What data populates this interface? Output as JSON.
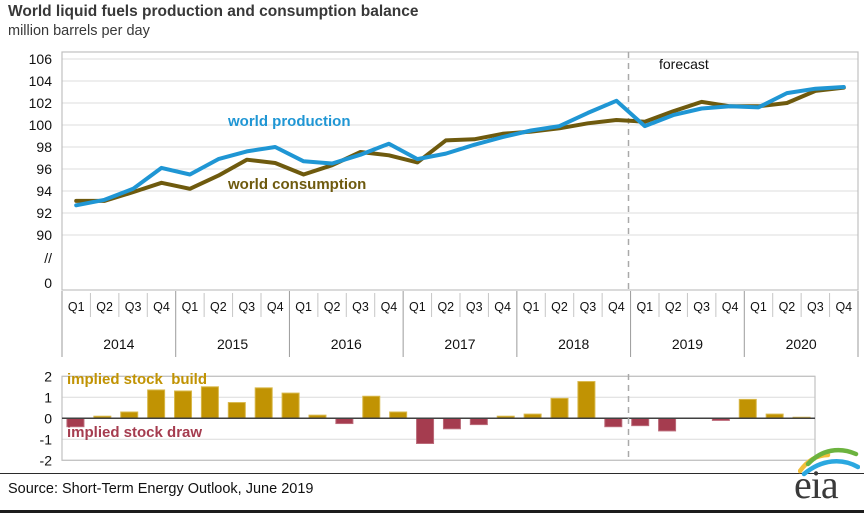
{
  "title": "World liquid fuels production and consumption balance",
  "subtitle": "million barrels per day",
  "source": "Source: Short-Term Energy Outlook, June 2019",
  "logo": {
    "text": "eia",
    "swoosh_colors": [
      "#f2bf3a",
      "#6cb33f",
      "#2ba8e0"
    ]
  },
  "colors": {
    "production_blue": "#1f96d4",
    "consumption_olive": "#6e5a0e",
    "build_gold": "#c19303",
    "draw_red": "#a53c4f",
    "gridline": "#dcdcdc",
    "frame": "#c0c0c0",
    "forecast_dash": "#a9a9a9",
    "zero_line": "#404040"
  },
  "chart_data": [
    {
      "type": "line",
      "title": "World liquid fuels production and consumption balance",
      "ylabel": "million barrels per day",
      "forecast_label": "forecast",
      "forecast_divider_after": "2018-Q4",
      "grid": "on",
      "yticks": [
        106,
        104,
        102,
        100,
        98,
        96,
        94,
        92,
        90
      ],
      "axis_break_label": "//",
      "zero_label": "0",
      "ylim": [
        90,
        106
      ],
      "x_quarter_labels": [
        "Q1",
        "Q2",
        "Q3",
        "Q4"
      ],
      "years": [
        "2014",
        "2015",
        "2016",
        "2017",
        "2018",
        "2019",
        "2020"
      ],
      "series": [
        {
          "name": "world production",
          "color": "#1f96d4",
          "values": [
            92.7,
            93.2,
            94.2,
            96.1,
            95.5,
            96.9,
            97.6,
            98.0,
            96.7,
            96.5,
            97.3,
            98.3,
            96.9,
            97.4,
            98.2,
            98.9,
            99.5,
            99.9,
            101.1,
            102.2,
            99.9,
            100.9,
            101.5,
            101.7,
            101.6,
            102.9,
            103.3,
            103.45
          ]
        },
        {
          "name": "world consumption",
          "color": "#6e5a0e",
          "values": [
            93.1,
            93.1,
            93.9,
            94.75,
            94.2,
            95.4,
            96.85,
            96.55,
            95.5,
            96.35,
            97.55,
            97.25,
            96.6,
            98.6,
            98.7,
            99.2,
            99.4,
            99.7,
            100.15,
            100.45,
            100.3,
            101.25,
            102.1,
            101.7,
            101.7,
            102.0,
            103.1,
            103.4
          ]
        }
      ]
    },
    {
      "type": "bar",
      "name": "implied stock change",
      "build_label": "implied stock  build",
      "draw_label": "implied stock draw",
      "build_color": "#c19303",
      "draw_color": "#a53c4f",
      "grid": "on",
      "yticks": [
        2,
        1,
        0,
        -1,
        -2
      ],
      "ylim": [
        -2,
        2
      ],
      "x_quarter_labels": [
        "Q1",
        "Q2",
        "Q3",
        "Q4"
      ],
      "years": [
        "2014",
        "2015",
        "2016",
        "2017",
        "2018",
        "2019",
        "2020"
      ],
      "values": [
        -0.4,
        0.1,
        0.3,
        1.35,
        1.3,
        1.5,
        0.75,
        1.45,
        1.2,
        0.15,
        -0.25,
        1.05,
        0.3,
        -1.2,
        -0.5,
        -0.3,
        0.1,
        0.2,
        0.95,
        1.75,
        -0.4,
        -0.35,
        -0.6,
        0.0,
        -0.1,
        0.9,
        0.2,
        0.05
      ]
    }
  ]
}
